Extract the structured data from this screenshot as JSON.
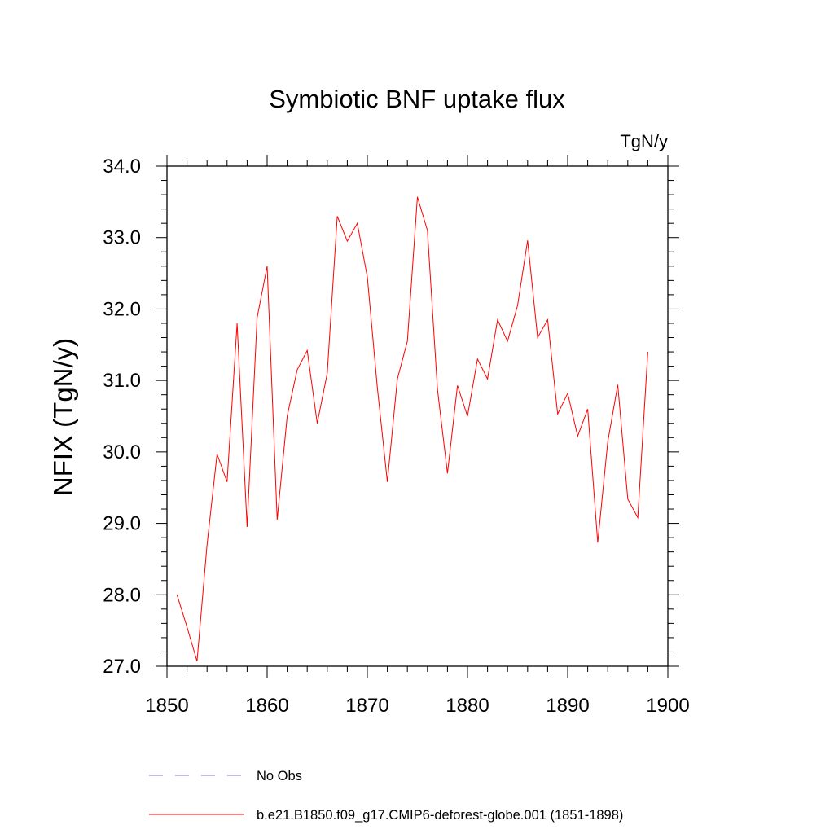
{
  "chart_data": {
    "type": "line",
    "title": "Symbiotic BNF uptake flux",
    "units_label": "TgN/y",
    "ylabel": "NFIX  (TgN/y)",
    "xlabel": "",
    "xlim": [
      1850,
      1900
    ],
    "ylim": [
      27.0,
      34.0
    ],
    "x_ticks": [
      1850,
      1860,
      1870,
      1880,
      1890,
      1900
    ],
    "y_ticks": [
      "27.0",
      "28.0",
      "29.0",
      "30.0",
      "31.0",
      "32.0",
      "33.0",
      "34.0"
    ],
    "grid": false,
    "legend": [
      {
        "label": "No Obs",
        "color": "#7b7bd6",
        "style": "dashed"
      },
      {
        "label": "b.e21.B1850.f09_g17.CMIP6-deforest-globe.001 (1851-1898)",
        "color": "#ff0000",
        "style": "solid"
      }
    ],
    "series": [
      {
        "name": "b.e21.B1850.f09_g17.CMIP6-deforest-globe.001 (1851-1898)",
        "color": "#ff0000",
        "x": [
          1851,
          1852,
          1853,
          1854,
          1855,
          1856,
          1857,
          1858,
          1859,
          1860,
          1861,
          1862,
          1863,
          1864,
          1865,
          1866,
          1867,
          1868,
          1869,
          1870,
          1871,
          1872,
          1873,
          1874,
          1875,
          1876,
          1877,
          1878,
          1879,
          1880,
          1881,
          1882,
          1883,
          1884,
          1885,
          1886,
          1887,
          1888,
          1889,
          1890,
          1891,
          1892,
          1893,
          1894,
          1895,
          1896,
          1897,
          1898
        ],
        "y": [
          28.0,
          27.55,
          27.07,
          28.7,
          29.97,
          29.58,
          31.8,
          28.95,
          31.88,
          32.6,
          29.05,
          30.5,
          31.15,
          31.42,
          30.4,
          31.1,
          33.3,
          32.95,
          33.2,
          32.45,
          30.9,
          29.58,
          31.02,
          31.55,
          33.57,
          33.1,
          30.88,
          29.7,
          30.93,
          30.5,
          31.3,
          31.02,
          31.85,
          31.55,
          32.05,
          32.96,
          31.6,
          31.85,
          30.53,
          30.82,
          30.22,
          30.6,
          28.73,
          30.14,
          30.94,
          29.34,
          29.08,
          31.4
        ]
      }
    ]
  }
}
